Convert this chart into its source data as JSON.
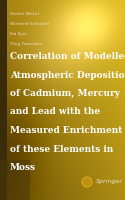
{
  "authors": [
    "Stefan Nickel",
    "Winfried Schröder",
    "Ilia Ilyin",
    "Oleg Travnikov"
  ],
  "title_lines": [
    "Correlation of Modelled",
    "Atmospheric Deposition",
    "of Cadmium, Mercury",
    "and Lead with the",
    "Measured Enrichment",
    "of these Elements in",
    "Moss"
  ],
  "publisher": "Springer",
  "author_color": "#e8e0c8",
  "title_color": "#ffffff",
  "springer_color": "#e8e0c8",
  "left_stripe_color": "#5a4a10",
  "grad_colors": [
    "#c8a010",
    "#d4b020",
    "#e8c830",
    "#b89018",
    "#9a7a10",
    "#806008"
  ],
  "bg_base": "#b8900e"
}
